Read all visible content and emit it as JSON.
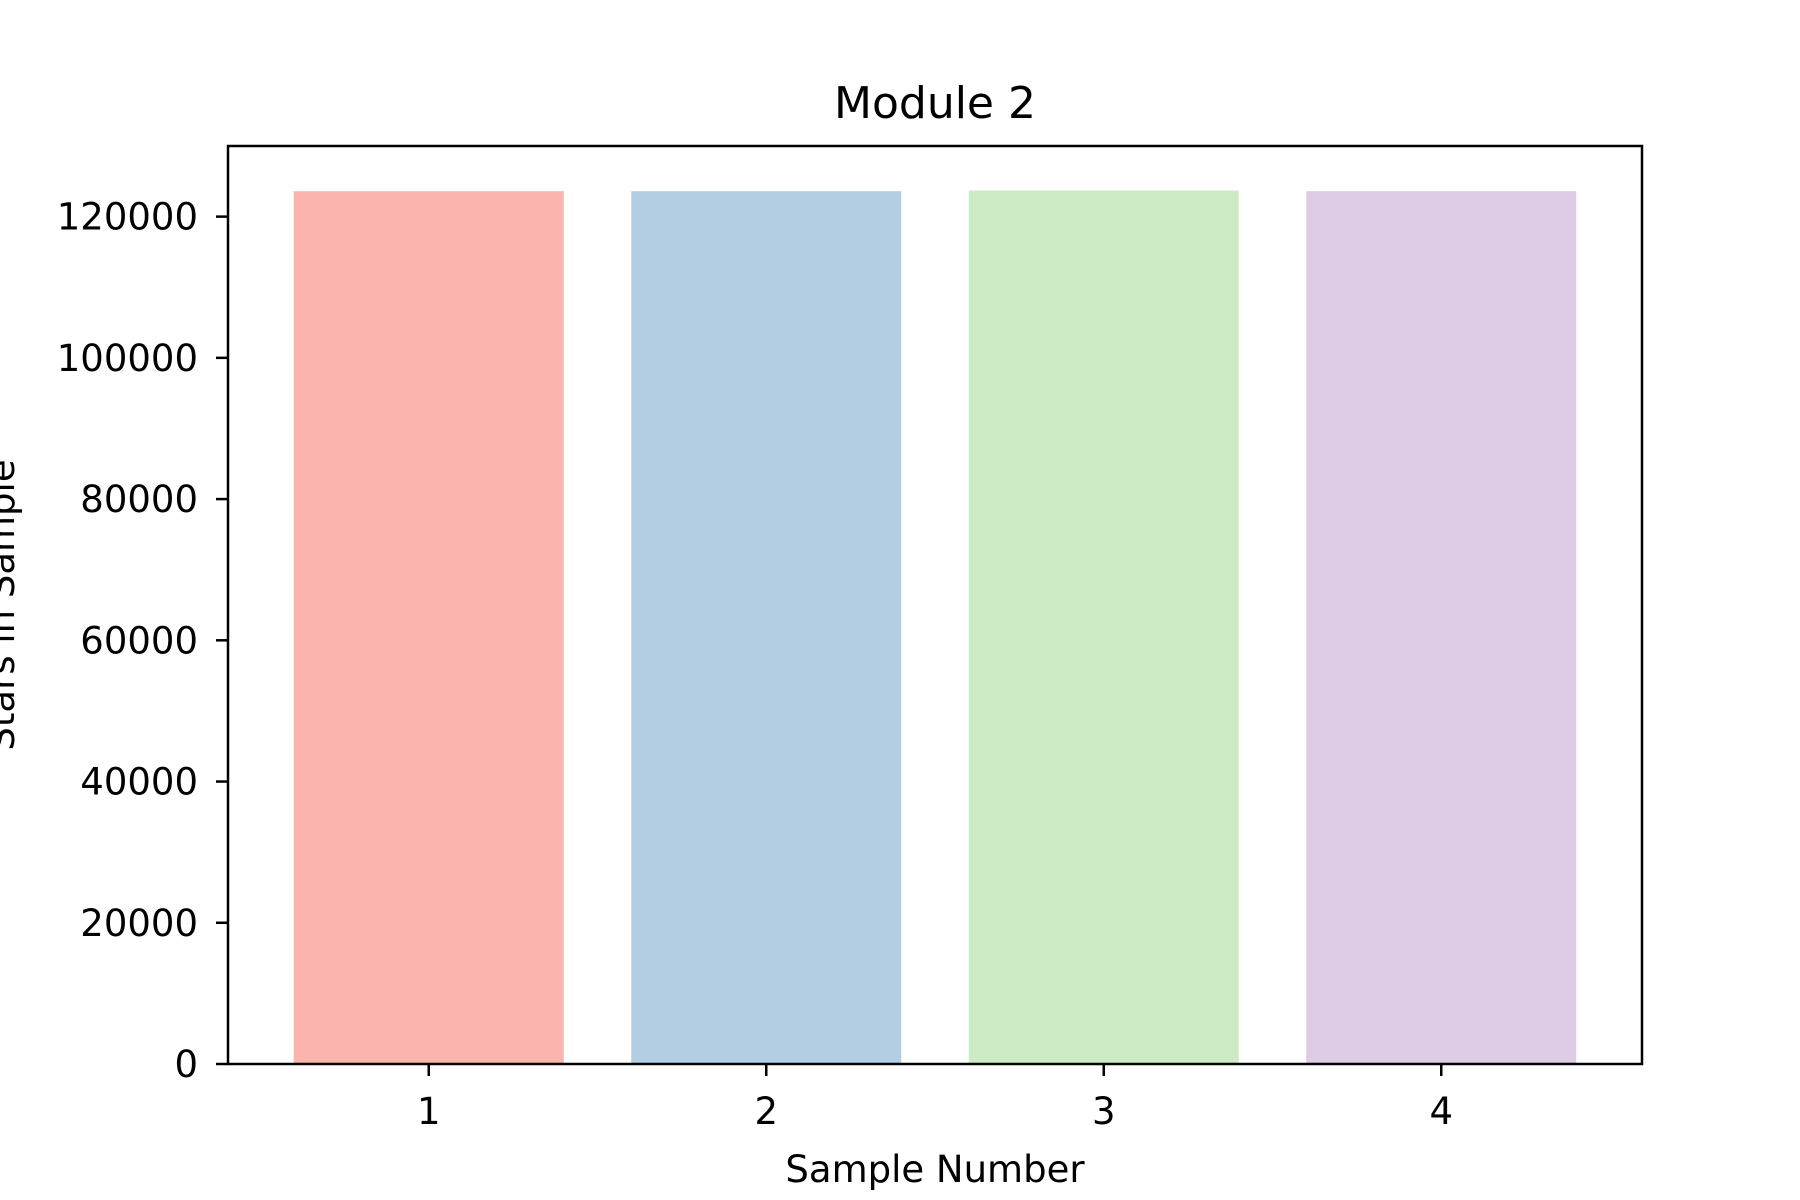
{
  "chart_data": {
    "type": "bar",
    "title": "Module 2",
    "xlabel": "Sample Number",
    "ylabel": "Stars in Sample",
    "categories": [
      "1",
      "2",
      "3",
      "4"
    ],
    "values": [
      123600,
      123600,
      123700,
      123600
    ],
    "colors": [
      "#fbb4ae",
      "#b3cde3",
      "#ccebc5",
      "#decbe4"
    ],
    "ylim": [
      0,
      130000
    ],
    "yticks": [
      0,
      20000,
      40000,
      60000,
      80000,
      100000,
      120000
    ],
    "grid": false,
    "legend": "none"
  }
}
